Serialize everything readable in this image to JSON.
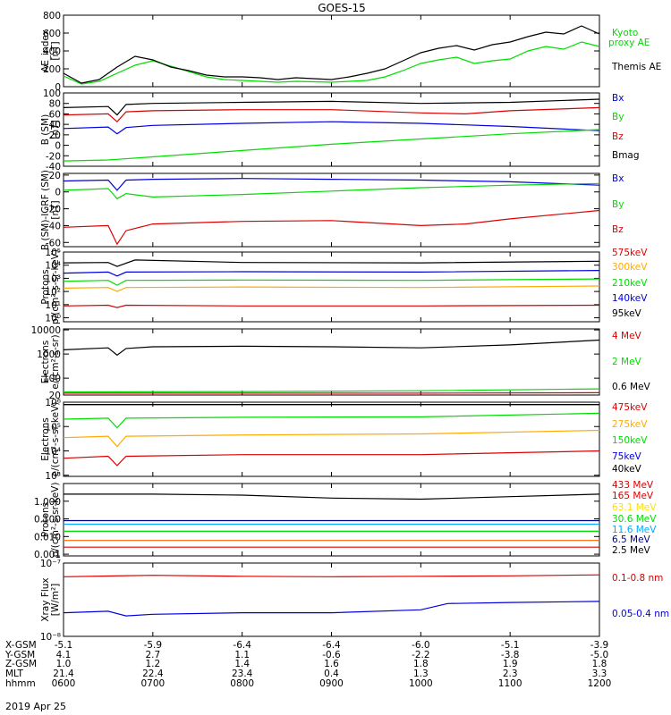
{
  "title": "GOES-15",
  "date": "2019 Apr 25",
  "time_axis": {
    "tick_labels": [
      "0600",
      "0700",
      "0800",
      "0900",
      "1000",
      "1100",
      "1200"
    ],
    "range_hours": [
      6,
      12
    ]
  },
  "ephemeris": {
    "rows": [
      {
        "label": "X-GSM",
        "values": [
          "-5.1",
          "-5.9",
          "-6.4",
          "-6.4",
          "-6.0",
          "-5.1",
          "-3.9"
        ]
      },
      {
        "label": "Y-GSM",
        "values": [
          "4.1",
          "2.7",
          "1.1",
          "-0.6",
          "-2.2",
          "-3.8",
          "-5.0"
        ]
      },
      {
        "label": "Z-GSM",
        "values": [
          "1.0",
          "1.2",
          "1.4",
          "1.6",
          "1.8",
          "1.9",
          "1.8"
        ]
      },
      {
        "label": "MLT",
        "values": [
          "21.4",
          "22.4",
          "23.4",
          "0.4",
          "1.3",
          "2.3",
          "3.3"
        ]
      },
      {
        "label": "hhmm",
        "values": [
          "0600",
          "0700",
          "0800",
          "0900",
          "1000",
          "1100",
          "1200"
        ]
      }
    ]
  },
  "chart_data": [
    {
      "type": "line",
      "ylabel": [
        "AE_index",
        "[nT]"
      ],
      "ylim": [
        0,
        800
      ],
      "ticks": [
        "800",
        "600",
        "400",
        "200",
        "0"
      ],
      "tick_values": [
        800,
        600,
        400,
        200,
        0
      ],
      "series": [
        {
          "name": "Kyoto",
          "label2": "proxy AE",
          "color": "#00dd00",
          "x": [
            6.0,
            6.2,
            6.4,
            6.6,
            6.8,
            7.0,
            7.2,
            7.4,
            7.6,
            7.8,
            8.0,
            8.2,
            8.4,
            8.6,
            8.8,
            9.0,
            9.2,
            9.4,
            9.6,
            9.8,
            10.0,
            10.2,
            10.4,
            10.6,
            10.8,
            11.0,
            11.2,
            11.4,
            11.6,
            11.8,
            12.0
          ],
          "y": [
            120,
            30,
            60,
            150,
            240,
            290,
            230,
            170,
            110,
            80,
            70,
            60,
            50,
            60,
            55,
            50,
            60,
            70,
            110,
            180,
            260,
            300,
            330,
            260,
            290,
            310,
            400,
            450,
            420,
            500,
            450
          ]
        },
        {
          "name": "Themis AE",
          "color": "#000000",
          "x": [
            6.0,
            6.2,
            6.4,
            6.6,
            6.8,
            7.0,
            7.2,
            7.4,
            7.6,
            7.8,
            8.0,
            8.2,
            8.4,
            8.6,
            8.8,
            9.0,
            9.2,
            9.4,
            9.6,
            9.8,
            10.0,
            10.2,
            10.4,
            10.6,
            10.8,
            11.0,
            11.2,
            11.4,
            11.6,
            11.8,
            12.0
          ],
          "y": [
            150,
            40,
            80,
            220,
            340,
            300,
            220,
            180,
            130,
            110,
            110,
            100,
            80,
            100,
            90,
            80,
            110,
            150,
            200,
            290,
            380,
            430,
            460,
            410,
            470,
            500,
            560,
            610,
            590,
            680,
            590
          ]
        }
      ]
    },
    {
      "type": "line",
      "ylabel": [
        "B (SM)",
        "[nT]"
      ],
      "ylim": [
        -40,
        100
      ],
      "ticks": [
        "100",
        "80",
        "60",
        "40",
        "20",
        "0",
        "-20",
        "-40"
      ],
      "tick_values": [
        100,
        80,
        60,
        40,
        20,
        0,
        -20,
        -40
      ],
      "series": [
        {
          "name": "Bx",
          "color": "#0000dd",
          "x": [
            6.0,
            6.5,
            6.6,
            6.7,
            7.0,
            8.0,
            9.0,
            10.0,
            11.0,
            12.0
          ],
          "y": [
            32,
            35,
            22,
            34,
            38,
            42,
            45,
            42,
            36,
            28
          ]
        },
        {
          "name": "By",
          "color": "#00dd00",
          "x": [
            6.0,
            6.5,
            7.0,
            8.0,
            9.0,
            10.0,
            11.0,
            12.0
          ],
          "y": [
            -30,
            -28,
            -22,
            -10,
            2,
            12,
            22,
            30
          ]
        },
        {
          "name": "Bz",
          "color": "#dd0000",
          "x": [
            6.0,
            6.5,
            6.6,
            6.7,
            7.0,
            8.0,
            9.0,
            10.0,
            10.5,
            11.0,
            12.0
          ],
          "y": [
            58,
            60,
            45,
            64,
            66,
            68,
            68,
            62,
            60,
            66,
            72
          ]
        },
        {
          "name": "Bmag",
          "color": "#000000",
          "x": [
            6.0,
            6.5,
            6.6,
            6.7,
            7.0,
            8.0,
            9.0,
            10.0,
            11.0,
            12.0
          ],
          "y": [
            72,
            74,
            58,
            78,
            80,
            82,
            84,
            80,
            82,
            88
          ]
        }
      ]
    },
    {
      "type": "line",
      "ylabel": [
        "B (SM)-IGRF (SM)",
        "[nT]"
      ],
      "ylim": [
        -65,
        22
      ],
      "ticks": [
        "20",
        "0",
        "-20",
        "-40",
        "-60"
      ],
      "tick_values": [
        20,
        0,
        -20,
        -40,
        -60
      ],
      "series": [
        {
          "name": "Bx",
          "color": "#0000dd",
          "x": [
            6.0,
            6.5,
            6.6,
            6.7,
            7.0,
            8.0,
            9.0,
            10.0,
            11.0,
            12.0
          ],
          "y": [
            13,
            14,
            2,
            14,
            15,
            16,
            15,
            14,
            12,
            8
          ]
        },
        {
          "name": "By",
          "color": "#00dd00",
          "x": [
            6.0,
            6.5,
            6.6,
            6.7,
            7.0,
            8.0,
            9.0,
            10.0,
            11.0,
            12.0
          ],
          "y": [
            2,
            4,
            -8,
            -2,
            -6,
            -3,
            1,
            5,
            8,
            10
          ]
        },
        {
          "name": "Bz",
          "color": "#dd0000",
          "x": [
            6.0,
            6.5,
            6.6,
            6.7,
            7.0,
            8.0,
            9.0,
            10.0,
            10.5,
            11.0,
            12.0
          ],
          "y": [
            -42,
            -40,
            -62,
            -46,
            -38,
            -35,
            -34,
            -40,
            -38,
            -32,
            -22
          ]
        }
      ]
    },
    {
      "type": "line",
      "yscale": "log",
      "ylabel": [
        "Protons",
        "p/(cm²-s-sr-keV)"
      ],
      "ylim": [
        0.5,
        100000
      ],
      "ticks": [
        "10⁵",
        "10⁴",
        "10³",
        "10²",
        "10¹",
        "10⁰"
      ],
      "tick_values": [
        100000,
        10000,
        1000,
        100,
        10,
        1
      ],
      "series": [
        {
          "name": "575keV",
          "color": "#dd0000",
          "x": [
            6.0,
            6.5,
            6.6,
            6.7,
            8.0,
            10.0,
            12.0
          ],
          "y": [
            8,
            9,
            6,
            9,
            8,
            8,
            9
          ]
        },
        {
          "name": "300keV",
          "color": "#ffaa00",
          "x": [
            6.0,
            6.5,
            6.6,
            6.7,
            8.0,
            10.0,
            12.0
          ],
          "y": [
            180,
            200,
            100,
            200,
            220,
            200,
            260
          ]
        },
        {
          "name": "210keV",
          "color": "#00dd00",
          "x": [
            6.0,
            6.5,
            6.6,
            6.7,
            8.0,
            10.0,
            12.0
          ],
          "y": [
            600,
            700,
            300,
            700,
            750,
            700,
            900
          ]
        },
        {
          "name": "140keV",
          "color": "#0000dd",
          "x": [
            6.0,
            6.5,
            6.6,
            6.7,
            8.0,
            10.0,
            12.0
          ],
          "y": [
            2500,
            3000,
            1500,
            3000,
            3200,
            3000,
            4000
          ]
        },
        {
          "name": "95keV",
          "color": "#000000",
          "x": [
            6.0,
            6.5,
            6.6,
            6.8,
            8.0,
            10.0,
            12.0
          ],
          "y": [
            15000,
            16000,
            8000,
            25000,
            16000,
            15000,
            20000
          ]
        }
      ]
    },
    {
      "type": "line",
      "yscale": "log",
      "ylabel": [
        "Electrons",
        "e/(cm²-s-sr)"
      ],
      "ylim": [
        20,
        11000
      ],
      "ticks": [
        "10000",
        "1000",
        "100",
        "20"
      ],
      "tick_values": [
        10000,
        1000,
        100,
        20
      ],
      "series": [
        {
          "name": "4 MeV",
          "color": "#dd0000",
          "x": [
            6.0,
            8.0,
            10.0,
            12.0
          ],
          "y": [
            24,
            24,
            24,
            25
          ]
        },
        {
          "name": "2 MeV",
          "color": "#00dd00",
          "x": [
            6.0,
            8.0,
            10.0,
            12.0
          ],
          "y": [
            27,
            28,
            30,
            36
          ]
        },
        {
          "name": "0.6 MeV",
          "color": "#000000",
          "x": [
            6.0,
            6.5,
            6.6,
            6.7,
            7.0,
            8.0,
            9.0,
            10.0,
            11.0,
            12.0
          ],
          "y": [
            1500,
            1800,
            900,
            1700,
            2000,
            2100,
            2000,
            1800,
            2400,
            3800
          ]
        }
      ]
    },
    {
      "type": "line",
      "yscale": "log",
      "ylabel": [
        "Electrons",
        "e/(cm²-s-sr-keV)"
      ],
      "ylim": [
        900,
        1000000
      ],
      "ticks": [
        "10⁶",
        "10⁵",
        "10⁴",
        "10³"
      ],
      "tick_values": [
        1000000,
        100000,
        10000,
        1000
      ],
      "series": [
        {
          "name": "475keV",
          "color": "#dd0000",
          "x": [
            6.0,
            6.5,
            6.6,
            6.7,
            8.0,
            10.0,
            12.0
          ],
          "y": [
            5000,
            6000,
            2500,
            6000,
            7000,
            7000,
            10000
          ]
        },
        {
          "name": "275keV",
          "color": "#ffaa00",
          "x": [
            6.0,
            6.5,
            6.6,
            6.7,
            8.0,
            10.0,
            12.0
          ],
          "y": [
            35000,
            40000,
            15000,
            40000,
            45000,
            50000,
            70000
          ]
        },
        {
          "name": "150keV",
          "color": "#00dd00",
          "x": [
            6.0,
            6.5,
            6.6,
            6.7,
            8.0,
            10.0,
            12.0
          ],
          "y": [
            200000,
            220000,
            90000,
            220000,
            240000,
            250000,
            350000
          ]
        },
        {
          "name": "75keV",
          "color": "#0000dd",
          "x": [
            6.0,
            12.0
          ],
          "y": [
            800000,
            800000
          ]
        },
        {
          "name": "40keV",
          "color": "#000000",
          "x": [
            6.0,
            12.0
          ],
          "y": [
            800000,
            800000
          ]
        }
      ]
    },
    {
      "type": "line",
      "yscale": "log",
      "ylabel": [
        "Protons",
        "p/(cm²-s-sr-keV)"
      ],
      "ylim": [
        0.0008,
        10
      ],
      "ticks": [
        "1.000",
        "0.100",
        "0.010",
        "0.001"
      ],
      "tick_values": [
        1,
        0.1,
        0.01,
        0.001
      ],
      "series": [
        {
          "name": "433 MeV",
          "color": "#000000",
          "x": [
            6.0,
            7.0,
            8.0,
            9.0,
            10.0,
            11.0,
            12.0
          ],
          "y": [
            2.5,
            2.5,
            2.2,
            1.5,
            1.3,
            1.8,
            2.5
          ]
        },
        {
          "name": "165 MeV",
          "color": "#dd0000",
          "x": [
            6.0,
            12.0
          ],
          "y": [
            0.0025,
            0.0025
          ]
        },
        {
          "name": "63.1 MeV",
          "color": "#ffdd00",
          "x": [
            6.0,
            12.0
          ],
          "y": [
            0.02,
            0.02
          ]
        },
        {
          "name": "30.6 MeV",
          "color": "#00dd00",
          "x": [
            6.0,
            12.0
          ],
          "y": [
            0.02,
            0.02
          ]
        },
        {
          "name": "11.6 MeV",
          "color": "#00aaff",
          "x": [
            6.0,
            12.0
          ],
          "y": [
            0.05,
            0.05
          ]
        },
        {
          "name": "6.5 MeV",
          "color": "#000088",
          "x": [
            6.0,
            12.0
          ],
          "y": [
            0.08,
            0.08
          ]
        },
        {
          "name": "2.5 MeV",
          "color": "#ff6600",
          "x": [
            6.0,
            12.0
          ],
          "y": [
            0.006,
            0.006
          ]
        }
      ]
    },
    {
      "type": "line",
      "yscale": "log",
      "ylabel": [
        "Xray Flux",
        "[W/m²]"
      ],
      "ylim": [
        1e-08,
        1e-07
      ],
      "ticks": [
        "10⁻⁷",
        "10⁻⁸"
      ],
      "tick_values": [
        1e-07,
        1e-08
      ],
      "series": [
        {
          "name": "0.1-0.8 nm",
          "color": "#dd0000",
          "x": [
            6.0,
            7.0,
            8.0,
            9.0,
            10.0,
            11.0,
            12.0
          ],
          "y": [
            6.5e-08,
            6.8e-08,
            6.6e-08,
            6.5e-08,
            6.6e-08,
            6.7e-08,
            6.9e-08
          ]
        },
        {
          "name": "0.05-0.4 nm",
          "color": "#0000dd",
          "x": [
            6.0,
            6.5,
            6.7,
            7.0,
            8.0,
            9.0,
            10.0,
            10.3,
            11.0,
            12.0
          ],
          "y": [
            2.1e-08,
            2.2e-08,
            1.9e-08,
            2e-08,
            2.1e-08,
            2.1e-08,
            2.3e-08,
            2.8e-08,
            2.9e-08,
            3e-08
          ]
        }
      ]
    }
  ]
}
